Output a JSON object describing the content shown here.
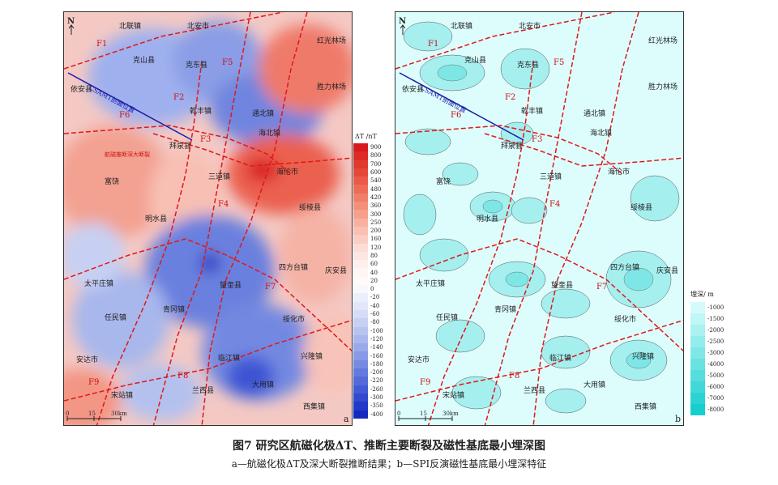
{
  "caption": {
    "title": "图7  研究区航磁化极ΔT、推断主要断裂及磁性基底最小埋深图",
    "subtitle": "a—航磁化极ΔT及深大断裂推断结果；b—SPI反演磁性基底最小埋深特征"
  },
  "panel_a": {
    "label": "a",
    "legend_title": "ΔT /nT",
    "legend_values": [
      "900",
      "800",
      "700",
      "600",
      "540",
      "480",
      "420",
      "360",
      "300",
      "250",
      "200",
      "160",
      "120",
      "80",
      "60",
      "40",
      "20",
      "0",
      "-20",
      "-40",
      "-60",
      "-80",
      "-100",
      "-120",
      "-140",
      "-160",
      "-180",
      "-200",
      "-220",
      "-260",
      "-300",
      "-350",
      "-400"
    ],
    "legend_colors": [
      "#d7191c",
      "#dc2b25",
      "#e1392e",
      "#e64838",
      "#ea5a46",
      "#ee6b55",
      "#f17e67",
      "#f48f79",
      "#f6a08c",
      "#f8b19f",
      "#fac0b2",
      "#fbcec4",
      "#fcdcd6",
      "#fde6e2",
      "#feefec",
      "#fff5f3",
      "#fefafa",
      "#f7f8fd",
      "#eceffb",
      "#e1e6f9",
      "#d5dcf6",
      "#c7d0f3",
      "#b8c4f0",
      "#a9b7ed",
      "#99a9ea",
      "#8899e6",
      "#778ae2",
      "#657ade",
      "#5469da",
      "#4359d5",
      "#3148cf",
      "#2138c8",
      "#1428c0"
    ],
    "annotation_deep_fault": "航磁推断深大断裂"
  },
  "panel_b": {
    "label": "b",
    "legend_title": "埋深/ m",
    "legend_values": [
      "-1000",
      "-1500",
      "-2000",
      "-2500",
      "-3000",
      "-4000",
      "-5000",
      "-6000",
      "-7000",
      "-8000"
    ],
    "legend_colors": [
      "#d4fbfb",
      "#bff6f6",
      "#aaf1f1",
      "#95ecec",
      "#80e7e7",
      "#6be2e2",
      "#56dddd",
      "#41d8d8",
      "#2cd3d3",
      "#17cece"
    ]
  },
  "north_label": "N",
  "profile_label": "CSAMT剖面位置",
  "scale": {
    "labels": [
      "0",
      "15",
      "30km"
    ]
  },
  "towns": [
    "北联镇",
    "北安市",
    "克山县",
    "克东县",
    "红光林场",
    "依安县",
    "胜力林场",
    "乾丰镇",
    "通北镇",
    "海北镇",
    "拜泉县",
    "三道镇",
    "海伦市",
    "富饶",
    "绥棱县",
    "明水县",
    "四方台镇",
    "庆安县",
    "太平庄镇",
    "望奎县",
    "任民镇",
    "青冈镇",
    "绥化市",
    "安达市",
    "临江镇",
    "兴隆镇",
    "宋站镇",
    "兰西县",
    "大用镇",
    "西集镇"
  ],
  "faults": [
    "F1",
    "F2",
    "F3",
    "F4",
    "F5",
    "F6",
    "F7",
    "F8",
    "F9"
  ]
}
